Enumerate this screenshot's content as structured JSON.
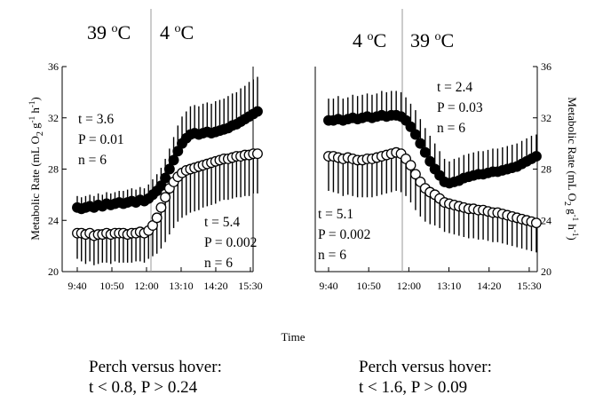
{
  "x_label": "Time",
  "y_label": "Metabolic Rate (mL O",
  "y_label_sub": "2",
  "y_label_g": " g",
  "y_label_gexp": "-1",
  "y_label_h": " h",
  "y_label_hexp": "-1",
  "y_label_end": ")",
  "summary_left": [
    "Perch versus hover:",
    "t < 0.8, P > 0.24"
  ],
  "summary_right": [
    "Perch versus hover:",
    "t < 1.6, P > 0.09"
  ],
  "chart_data": [
    {
      "type": "scatter",
      "condition_left": {
        "value": "39",
        "unit": "C"
      },
      "condition_right": {
        "value": "4",
        "unit": "C"
      },
      "y_ticks": [
        "36",
        "32",
        "28",
        "24",
        "20"
      ],
      "ylim": [
        20,
        36
      ],
      "x_ticks": [
        "9:40",
        "10:50",
        "12:00",
        "13:10",
        "14:20",
        "15:30"
      ],
      "stats_upper": [
        "t = 3.6",
        "P = 0.01",
        "n = 6"
      ],
      "stats_lower": [
        "t = 5.4",
        "P = 0.002",
        "n = 6"
      ],
      "series": [
        {
          "marker": "filled",
          "error_bar": "up",
          "values": [
            25.0,
            24.9,
            25.0,
            25.1,
            25.0,
            25.2,
            25.1,
            25.3,
            25.2,
            25.3,
            25.4,
            25.3,
            25.4,
            25.5,
            25.4,
            25.6,
            25.5,
            25.7,
            26.0,
            26.3,
            26.7,
            27.3,
            28.0,
            28.7,
            29.4,
            30.0,
            30.4,
            30.7,
            30.8,
            30.7,
            30.8,
            30.9,
            30.8,
            30.9,
            31.0,
            31.1,
            31.2,
            31.4,
            31.5,
            31.7,
            31.9,
            32.1,
            32.3,
            32.5
          ],
          "error": [
            0.9,
            0.9,
            0.9,
            0.9,
            0.9,
            0.9,
            0.9,
            0.9,
            0.9,
            0.9,
            0.9,
            1.0,
            1.0,
            1.0,
            1.0,
            1.0,
            1.0,
            1.1,
            1.2,
            1.3,
            1.4,
            1.5,
            1.6,
            1.8,
            2.0,
            2.1,
            2.1,
            2.2,
            2.2,
            2.2,
            2.3,
            2.3,
            2.3,
            2.4,
            2.4,
            2.4,
            2.5,
            2.5,
            2.5,
            2.6,
            2.6,
            2.7,
            2.7,
            2.7
          ]
        },
        {
          "marker": "open",
          "error_bar": "down",
          "values": [
            23.0,
            23.0,
            22.9,
            23.0,
            22.8,
            22.9,
            22.9,
            23.0,
            22.9,
            23.0,
            23.0,
            23.0,
            22.9,
            23.0,
            23.0,
            23.1,
            23.0,
            23.2,
            23.6,
            24.2,
            25.0,
            25.8,
            26.5,
            27.0,
            27.4,
            27.7,
            27.9,
            28.0,
            28.1,
            28.2,
            28.3,
            28.4,
            28.5,
            28.6,
            28.7,
            28.8,
            28.8,
            28.9,
            29.0,
            29.0,
            29.1,
            29.1,
            29.2,
            29.2
          ],
          "error": [
            2.0,
            2.2,
            2.3,
            2.2,
            2.3,
            2.3,
            2.2,
            2.3,
            2.3,
            2.2,
            2.3,
            2.3,
            2.2,
            2.3,
            2.2,
            2.3,
            2.3,
            2.2,
            2.4,
            2.8,
            3.2,
            3.5,
            3.6,
            3.6,
            3.5,
            3.5,
            3.5,
            3.4,
            3.4,
            3.4,
            3.3,
            3.3,
            3.3,
            3.3,
            3.2,
            3.2,
            3.2,
            3.2,
            3.2,
            3.2,
            3.2,
            3.2,
            3.1,
            3.1
          ]
        }
      ]
    },
    {
      "type": "scatter",
      "condition_left": {
        "value": "4",
        "unit": "C"
      },
      "condition_right": {
        "value": "39",
        "unit": "C"
      },
      "y_ticks": [
        "36",
        "32",
        "28",
        "24",
        "20"
      ],
      "ylim": [
        20,
        36
      ],
      "x_ticks": [
        "9:40",
        "10:50",
        "12:00",
        "13:10",
        "14:20",
        "15:30"
      ],
      "stats_upper": [
        "t = 2.4",
        "P = 0.03",
        "n = 6"
      ],
      "stats_lower": [
        "t = 5.1",
        "P = 0.002",
        "n = 6"
      ],
      "series": [
        {
          "marker": "filled",
          "error_bar": "up",
          "values": [
            31.8,
            31.8,
            31.9,
            31.8,
            31.9,
            32.0,
            31.9,
            32.0,
            32.1,
            32.0,
            32.1,
            32.2,
            32.1,
            32.2,
            32.2,
            32.1,
            31.8,
            31.3,
            30.7,
            30.0,
            29.3,
            28.6,
            28.0,
            27.5,
            27.0,
            26.9,
            27.0,
            27.1,
            27.3,
            27.4,
            27.5,
            27.6,
            27.6,
            27.7,
            27.8,
            27.8,
            27.9,
            28.0,
            28.1,
            28.2,
            28.4,
            28.6,
            28.8,
            29.0
          ],
          "error": [
            1.7,
            1.7,
            1.8,
            1.7,
            1.7,
            1.8,
            1.8,
            1.8,
            1.8,
            1.8,
            1.8,
            1.9,
            1.9,
            1.9,
            1.9,
            1.9,
            1.8,
            1.8,
            1.9,
            1.9,
            1.9,
            2.0,
            2.0,
            1.9,
            1.8,
            1.7,
            1.8,
            1.8,
            1.8,
            1.8,
            1.8,
            1.8,
            1.8,
            1.8,
            1.8,
            1.8,
            1.8,
            1.8,
            1.8,
            1.8,
            1.8,
            1.8,
            1.8,
            1.7
          ]
        },
        {
          "marker": "open",
          "error_bar": "down",
          "values": [
            29.0,
            29.0,
            28.9,
            28.8,
            28.9,
            28.8,
            28.7,
            28.7,
            28.8,
            28.8,
            28.9,
            29.0,
            29.1,
            29.2,
            29.3,
            29.2,
            28.8,
            28.3,
            27.6,
            27.0,
            26.5,
            26.2,
            26.0,
            25.7,
            25.4,
            25.3,
            25.2,
            25.1,
            25.0,
            24.9,
            24.9,
            24.8,
            24.8,
            24.7,
            24.6,
            24.6,
            24.5,
            24.4,
            24.3,
            24.2,
            24.1,
            24.0,
            23.9,
            23.8
          ],
          "error": [
            2.7,
            2.8,
            2.8,
            2.9,
            2.9,
            2.9,
            2.9,
            2.9,
            3.0,
            3.0,
            3.0,
            3.0,
            3.0,
            3.0,
            3.0,
            3.0,
            2.9,
            2.9,
            2.8,
            2.7,
            2.6,
            2.5,
            2.4,
            2.3,
            2.3,
            2.3,
            2.3,
            2.3,
            2.3,
            2.3,
            2.3,
            2.3,
            2.3,
            2.3,
            2.3,
            2.3,
            2.3,
            2.3,
            2.3,
            2.3,
            2.3,
            2.3,
            2.3,
            2.3
          ]
        }
      ]
    }
  ]
}
